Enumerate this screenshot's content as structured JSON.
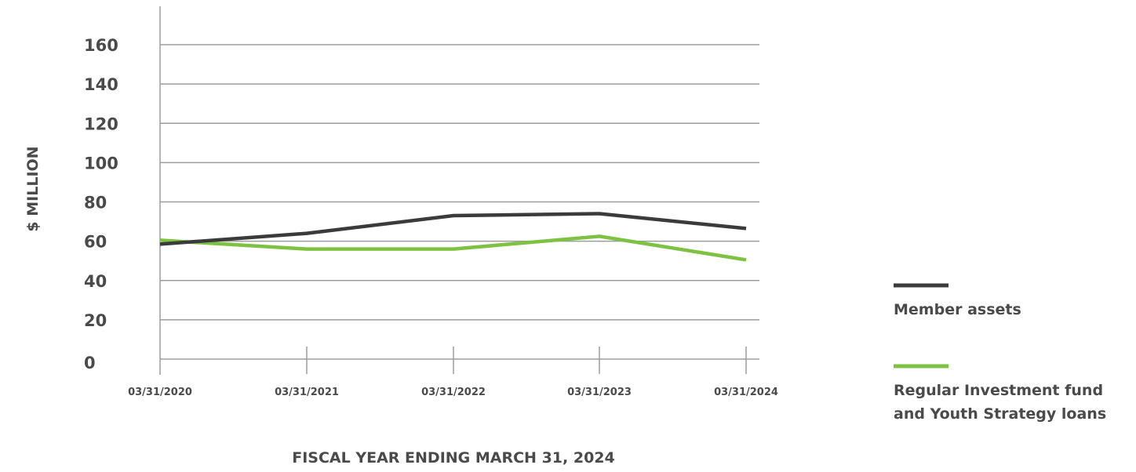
{
  "chart_data": {
    "type": "line",
    "x": [
      "03/31/2020",
      "03/31/2021",
      "03/31/2022",
      "03/31/2023",
      "03/31/2024"
    ],
    "series": [
      {
        "name": "Member assets",
        "color": "#3b3b3b",
        "values": [
          58.5,
          64,
          73,
          74,
          66.5
        ]
      },
      {
        "name": "Regular Investment fund and Youth Strategy loans",
        "name_lines": [
          "Regular Investment fund",
          "and Youth Strategy loans"
        ],
        "color": "#7dc242",
        "values": [
          60.5,
          56,
          56,
          62.5,
          50.5
        ]
      }
    ],
    "yticks": [
      0,
      20,
      40,
      60,
      80,
      100,
      120,
      140,
      160
    ],
    "ylim": [
      0,
      160
    ],
    "xlabel": "FISCAL YEAR ENDING MARCH 31, 2024",
    "ylabel": "$ MILLION",
    "grid": "horizontal",
    "legend_position": "right"
  }
}
